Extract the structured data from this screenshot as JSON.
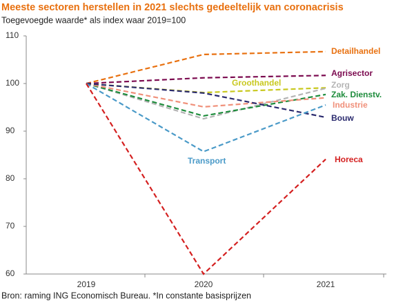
{
  "chart_data": {
    "type": "line",
    "title": "Meeste sectoren herstellen in 2021 slechts gedeeltelijk van coronacrisis",
    "subtitle": "Toegevoegde waarde* als index waar 2019=100",
    "source": "Bron: raming ING Economisch Bureau. *In constante basisprijzen",
    "categories": [
      "2019",
      "2020",
      "2021"
    ],
    "ylim": [
      60,
      110
    ],
    "yticks": [
      60,
      70,
      80,
      90,
      100,
      110
    ],
    "series": [
      {
        "name": "Detailhandel",
        "color": "#e8700f",
        "values": [
          100,
          106.1,
          106.7
        ]
      },
      {
        "name": "Agrisector",
        "color": "#7b0a4f",
        "values": [
          100,
          101.2,
          101.7
        ]
      },
      {
        "name": "Groothandel",
        "color": "#c8c81e",
        "values": [
          100,
          98.1,
          99.1
        ]
      },
      {
        "name": "Zorg",
        "color": "#b4b4b4",
        "values": [
          100,
          92.6,
          99
        ]
      },
      {
        "name": "Zak. Dienstv.",
        "color": "#1e8c3c",
        "values": [
          100,
          93.2,
          97.7
        ]
      },
      {
        "name": "Industrie",
        "color": "#f0907a",
        "values": [
          100,
          95.1,
          97
        ]
      },
      {
        "name": "Bouw",
        "color": "#2a2a6e",
        "values": [
          100,
          98,
          92.9
        ]
      },
      {
        "name": "Transport",
        "color": "#4a9ac8",
        "values": [
          100,
          85.7,
          95.5
        ]
      },
      {
        "name": "Horeca",
        "color": "#d42020",
        "values": [
          100,
          60,
          84.1
        ]
      }
    ]
  }
}
